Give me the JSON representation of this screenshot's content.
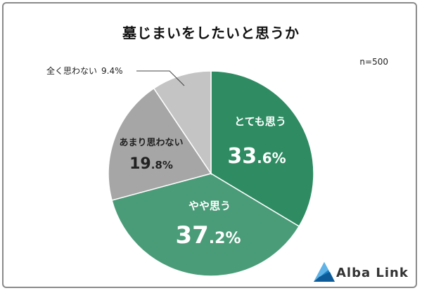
{
  "title": "墓じまいをしたいと思うか",
  "sample_size": "n=500",
  "brand": "Alba Link",
  "colors": {
    "strong": "#2e8b62",
    "somewhat": "#4a9c78",
    "not_much": "#a6a6a6",
    "not_at_all": "#c4c4c4",
    "logo": "#1a7ec4"
  },
  "chart_data": {
    "type": "pie",
    "title": "墓じまいをしたいと思うか",
    "slices": [
      {
        "label": "とても思う",
        "value": 33.6,
        "value_main": "33",
        "value_tail": ".6%",
        "color": "#2e8b62",
        "text_color": "#ffffff"
      },
      {
        "label": "やや思う",
        "value": 37.2,
        "value_main": "37",
        "value_tail": ".2%",
        "color": "#4a9c78",
        "text_color": "#ffffff"
      },
      {
        "label": "あまり思わない",
        "value": 19.8,
        "value_main": "19",
        "value_tail": ".8%",
        "color": "#a6a6a6",
        "text_color": "#222222"
      },
      {
        "label": "全く思わない",
        "value": 9.4,
        "value_text": "9.4%",
        "color": "#c4c4c4",
        "text_color": "#222222"
      }
    ]
  }
}
